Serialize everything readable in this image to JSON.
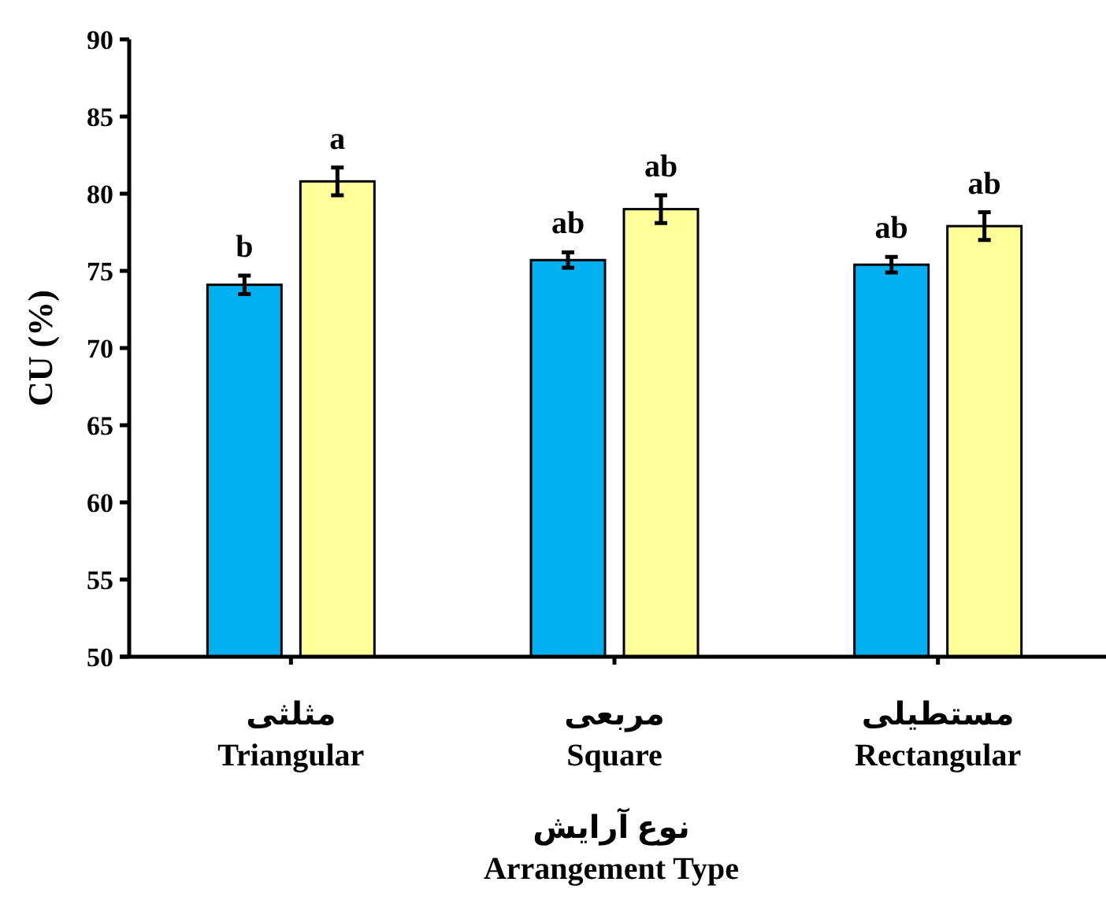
{
  "chart_data": {
    "type": "bar",
    "ylabel": "CU (%)",
    "xlabel": "نوع آرایش\nArrangement Type",
    "categories": [
      "مثلثی\nTriangular",
      "مربعی\nSquare",
      "مستطیلی\nRectangular"
    ],
    "series": [
      {
        "color": "#00b0f0",
        "values": [
          74.1,
          75.7,
          75.4
        ],
        "errors": [
          0.6,
          0.5,
          0.5
        ],
        "value_labels": [
          "b",
          "ab",
          "ab"
        ]
      },
      {
        "color": "#ffff99",
        "values": [
          80.8,
          79.0,
          77.9
        ],
        "errors": [
          0.9,
          0.9,
          0.9
        ],
        "value_labels": [
          "a",
          "ab",
          "ab"
        ]
      }
    ],
    "ylim": [
      50,
      90
    ],
    "yticks": [
      50,
      55,
      60,
      65,
      70,
      75,
      80,
      85,
      90
    ],
    "grid": false
  }
}
